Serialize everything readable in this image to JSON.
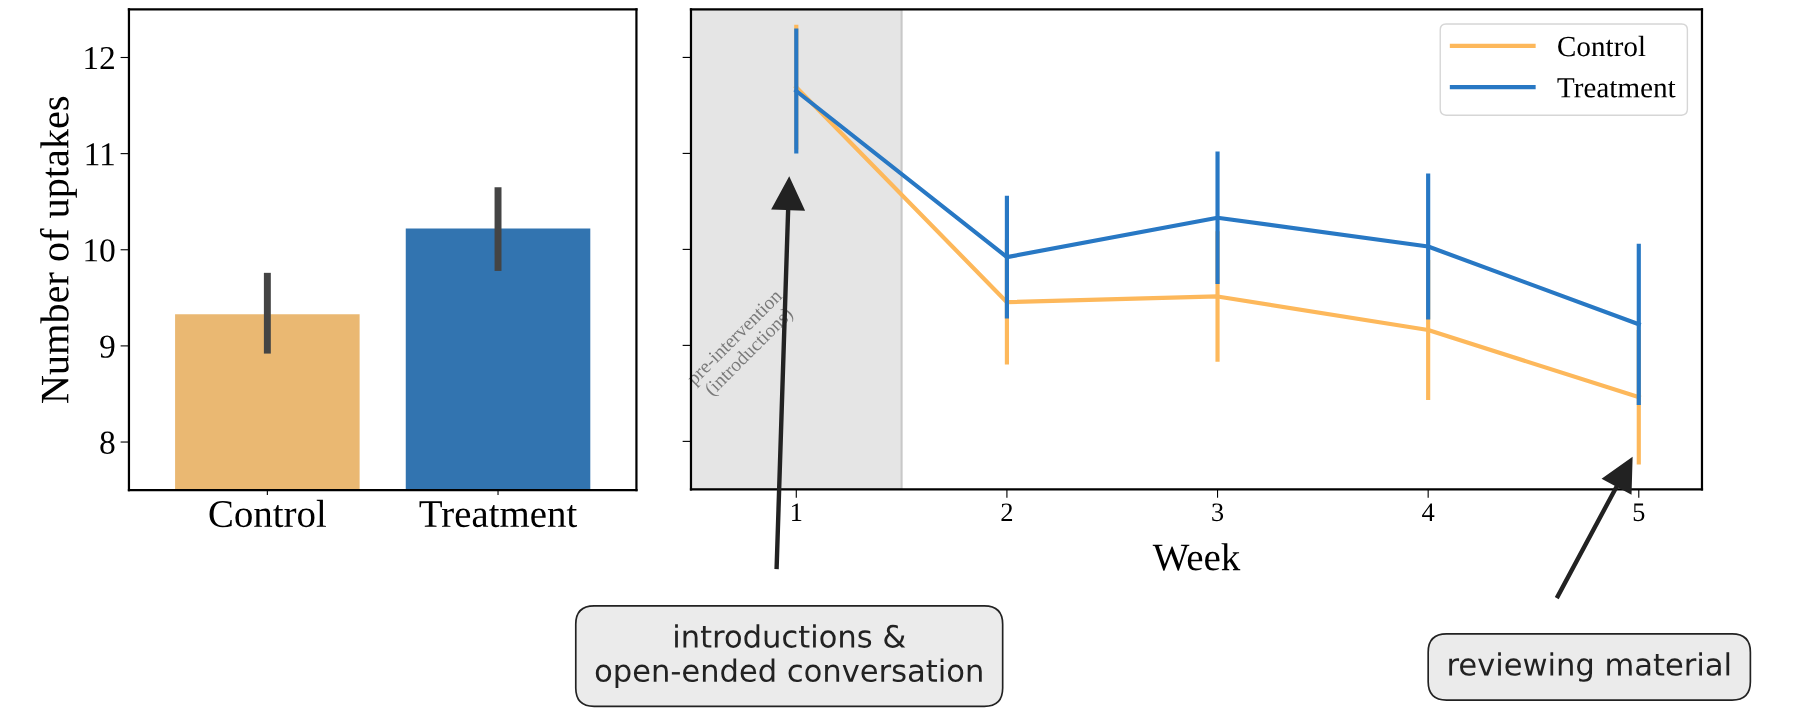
{
  "chart_data": [
    {
      "type": "bar",
      "categories": [
        "Control",
        "Treatment"
      ],
      "values": [
        9.33,
        10.22
      ],
      "colors": [
        "#eab872",
        "#3274b0"
      ],
      "errors": [
        [
          8.92,
          9.76
        ],
        [
          9.78,
          10.65
        ]
      ],
      "ylabel": "Number of uptakes",
      "ylim": [
        7.5,
        12.5
      ],
      "yticks": [
        8,
        9,
        10,
        11,
        12
      ],
      "grid": false
    },
    {
      "type": "line",
      "x": [
        1,
        2,
        3,
        4,
        5
      ],
      "xlabel": "Week",
      "xlim": [
        0.5,
        5.3
      ],
      "xticks": [
        1,
        2,
        3,
        4,
        5
      ],
      "ylim": [
        7.5,
        12.5
      ],
      "yticks": [
        {
          "value": 8,
          "label": null
        },
        {
          "value": 9,
          "label": null
        },
        {
          "value": 10,
          "label": null
        },
        {
          "value": 11,
          "label": null
        },
        {
          "value": 12,
          "label": null
        }
      ],
      "tick_labels": "x",
      "legend": "top right",
      "grid": false,
      "marker": "none",
      "line_style": "solid",
      "series": [
        {
          "name": "Control",
          "color": "#fdb85b",
          "values": [
            11.69,
            9.45,
            9.51,
            9.16,
            8.46
          ],
          "errors": [
            0.65,
            0.65,
            0.68,
            0.73,
            0.7
          ]
        },
        {
          "name": "Treatment",
          "color": "#2878c4",
          "values": [
            11.65,
            9.92,
            10.33,
            10.03,
            9.22
          ],
          "errors": [
            0.65,
            0.64,
            0.69,
            0.76,
            0.84
          ]
        }
      ],
      "bands": [
        {
          "axis": "x",
          "from": 0.5,
          "to": 1.5,
          "label": "pre-intervention\n(introductions)",
          "color": "#e5e5e5"
        }
      ],
      "annotations": [
        "introductions &\nopen-ended conversation",
        "reviewing material"
      ]
    }
  ]
}
